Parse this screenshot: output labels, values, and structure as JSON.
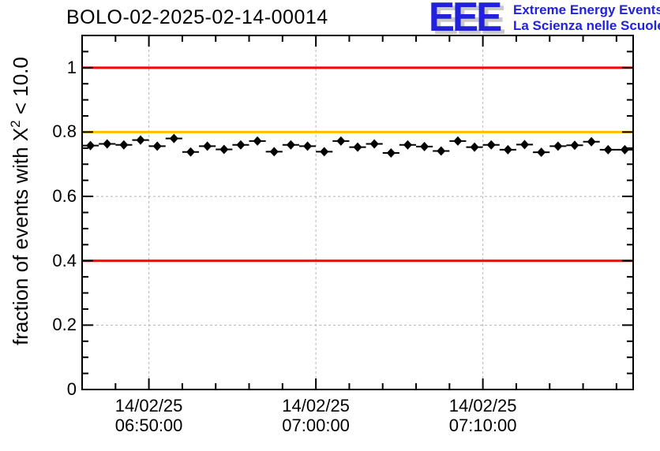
{
  "header": {
    "title": "BOLO-02-2025-02-14-00014",
    "logo": {
      "acronym": "EEE",
      "tagline_en": "Extreme Energy Events",
      "tagline_it": "La Scienza nelle Scuole",
      "color": "#2222dd",
      "shadow_color": "#c9c9c9"
    }
  },
  "chart_data": {
    "type": "scatter",
    "title": "BOLO-02-2025-02-14-00014",
    "ylabel": {
      "prefix": "fraction of events with X",
      "sup": "2",
      "suffix": " < 10.0"
    },
    "x_axis": {
      "start_time": "06:46:00",
      "end_time": "07:19:00",
      "span_seconds": 1980,
      "minor_tick_seconds": 120,
      "major_ticks": [
        {
          "offset_s": 240,
          "date": "14/02/25",
          "time": "06:50:00"
        },
        {
          "offset_s": 840,
          "date": "14/02/25",
          "time": "07:00:00"
        },
        {
          "offset_s": 1440,
          "date": "14/02/25",
          "time": "07:10:00"
        }
      ]
    },
    "y_axis": {
      "min": 0,
      "max": 1.1,
      "minor_step": 0.05,
      "major_ticks": [
        {
          "v": 0,
          "label": "0"
        },
        {
          "v": 0.2,
          "label": "0.2"
        },
        {
          "v": 0.4,
          "label": "0.4"
        },
        {
          "v": 0.6,
          "label": "0.6"
        },
        {
          "v": 0.8,
          "label": "0.8"
        },
        {
          "v": 1.0,
          "label": "1"
        }
      ]
    },
    "grid": {
      "show": true,
      "color": "#b4b4b4",
      "dash": "3,3"
    },
    "reference_lines": [
      {
        "y": 1.0,
        "color": "#ff0000"
      },
      {
        "y": 0.8,
        "color": "#ffc400"
      },
      {
        "y": 0.4,
        "color": "#ff0000"
      }
    ],
    "series": [
      {
        "name": "fraction of events with chi2 < 10",
        "marker": "diamond",
        "color": "#000000",
        "xerr_seconds": 30,
        "date": "14/02/25",
        "times": [
          "06:46:30",
          "06:47:30",
          "06:48:30",
          "06:49:30",
          "06:50:30",
          "06:51:30",
          "06:52:30",
          "06:53:30",
          "06:54:30",
          "06:55:30",
          "06:56:30",
          "06:57:30",
          "06:58:30",
          "06:59:30",
          "07:00:30",
          "07:01:30",
          "07:02:30",
          "07:03:30",
          "07:04:30",
          "07:05:30",
          "07:06:30",
          "07:07:30",
          "07:08:30",
          "07:09:30",
          "07:10:30",
          "07:11:30",
          "07:12:30",
          "07:13:30",
          "07:14:30",
          "07:15:30",
          "07:16:30",
          "07:17:30",
          "07:18:30"
        ],
        "offsets_s": [
          30,
          90,
          150,
          210,
          270,
          330,
          390,
          450,
          510,
          570,
          630,
          690,
          750,
          810,
          870,
          930,
          990,
          1050,
          1110,
          1170,
          1230,
          1290,
          1350,
          1410,
          1470,
          1530,
          1590,
          1650,
          1710,
          1770,
          1830,
          1890,
          1950
        ],
        "values": [
          0.758,
          0.763,
          0.76,
          0.775,
          0.756,
          0.78,
          0.738,
          0.756,
          0.746,
          0.76,
          0.772,
          0.739,
          0.76,
          0.756,
          0.739,
          0.772,
          0.753,
          0.763,
          0.735,
          0.76,
          0.755,
          0.741,
          0.772,
          0.753,
          0.76,
          0.745,
          0.761,
          0.737,
          0.756,
          0.759,
          0.77,
          0.745,
          0.745
        ]
      }
    ]
  }
}
